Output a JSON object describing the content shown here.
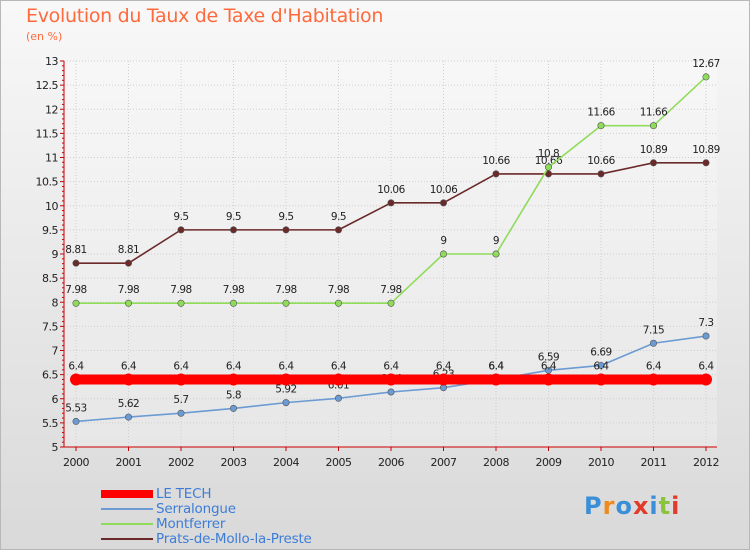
{
  "header": {
    "title": "Evolution du Taux de Taxe d'Habitation",
    "unit": "(en %)"
  },
  "colors": {
    "title": "#ff6a3d",
    "axis": "#cc0000",
    "legend_text": "#3d7dd8"
  },
  "logo": {
    "text": "Proxiti",
    "letter_colors": [
      "#3a8fd8",
      "#f08a1d",
      "#3a8fd8",
      "#e23b2a",
      "#3a8fd8",
      "#8ac43f",
      "#e23b2a"
    ]
  },
  "chart_data": {
    "type": "line",
    "title": "Evolution du Taux de Taxe d'Habitation",
    "ylabel": "(en %)",
    "xlabel": "",
    "x": [
      2000,
      2001,
      2002,
      2003,
      2004,
      2005,
      2006,
      2007,
      2008,
      2009,
      2010,
      2011,
      2012
    ],
    "ylim": [
      5,
      13
    ],
    "yticks": [
      5,
      5.5,
      6,
      6.5,
      7,
      7.5,
      8,
      8.5,
      9,
      9.5,
      10,
      10.5,
      11,
      11.5,
      12,
      12.5,
      13
    ],
    "grid": true,
    "legend_position": "bottom-left",
    "series": [
      {
        "name": "LE TECH",
        "color": "#ff0000",
        "values": [
          6.4,
          6.4,
          6.4,
          6.4,
          6.4,
          6.4,
          6.4,
          6.4,
          6.4,
          6.4,
          6.4,
          6.4,
          6.4
        ]
      },
      {
        "name": "Serralongue",
        "color": "#6b9bd2",
        "values": [
          5.53,
          5.62,
          5.7,
          5.8,
          5.92,
          6.01,
          6.14,
          6.23,
          6.4,
          6.59,
          6.69,
          7.15,
          7.3
        ]
      },
      {
        "name": "Montferrer",
        "color": "#8fdc5a",
        "values": [
          7.98,
          7.98,
          7.98,
          7.98,
          7.98,
          7.98,
          7.98,
          9,
          9,
          10.8,
          11.66,
          11.66,
          12.67
        ]
      },
      {
        "name": "Prats-de-Mollo-la-Preste",
        "color": "#6b2a2a",
        "values": [
          8.81,
          8.81,
          9.5,
          9.5,
          9.5,
          9.5,
          10.06,
          10.06,
          10.66,
          10.66,
          10.66,
          10.89,
          10.89
        ]
      }
    ]
  }
}
